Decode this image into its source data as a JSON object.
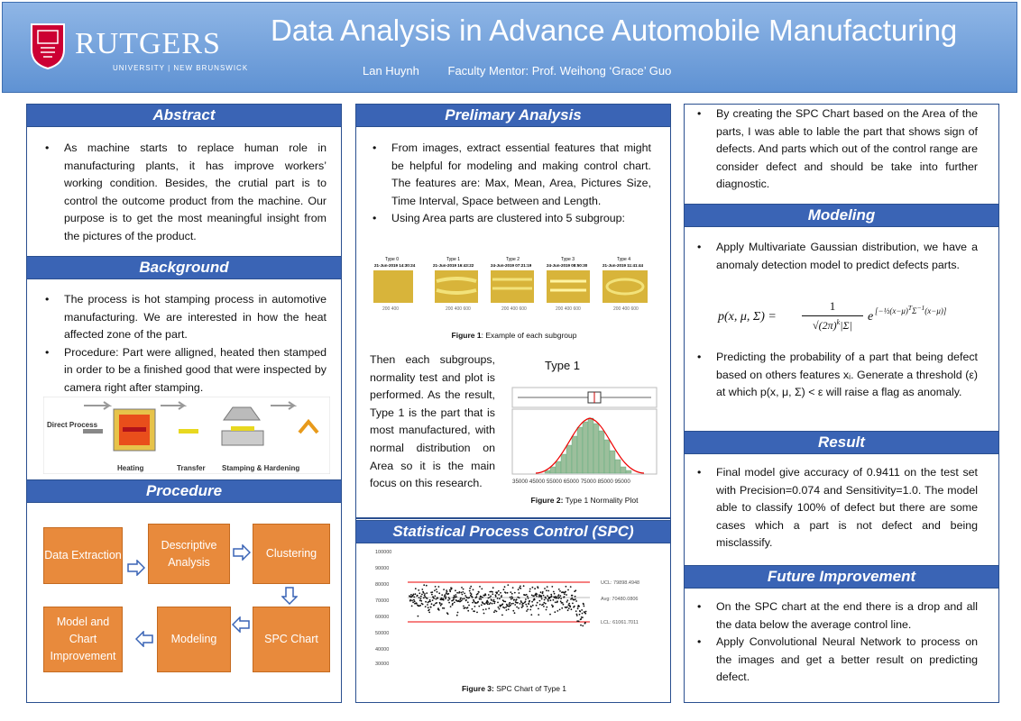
{
  "header": {
    "title": "Data Analysis in Advance Automobile Manufacturing",
    "author": "Lan Huynh",
    "mentor": "Faculty Mentor: Prof. Weihong ‘Grace’ Guo",
    "logo_text": "RUTGERS",
    "logo_sub": "UNIVERSITY | NEW BRUNSWICK"
  },
  "abstract": {
    "heading": "Abstract",
    "bullets": [
      "As machine starts to replace human role in manufacturing plants, it has improve workers’ working condition. Besides, the crutial part is to control the outcome product from the machine. Our purpose is to get the most meaningful insight from the pictures of the product."
    ]
  },
  "background": {
    "heading": "Background",
    "bullets": [
      "The process is hot stamping process in automotive manufacturing. We are interested in how the heat affected zone of the part.",
      "Procedure: Part were alligned, heated then stamped in order to be a finished good that were inspected by camera right after stamping."
    ],
    "diagram_labels": [
      "Direct Process",
      "Heating",
      "Transfer",
      "Stamping & Hardening"
    ]
  },
  "procedure": {
    "heading": "Procedure",
    "steps": [
      "Data Extraction",
      "Descriptive Analysis",
      "Clustering",
      "SPC Chart",
      "Modeling",
      "Model and Chart Improvement"
    ]
  },
  "preliminary": {
    "heading": "Prelimary Analysis",
    "bullets": [
      "From images, extract essential features that might be helpful for modeling and making control chart. The features are: Max, Mean, Area, Pictures Size, Time Interval, Space between and Length.",
      "Using Area parts are clustered into 5 subgroup:"
    ],
    "subgroup_labels": [
      "Type 0",
      "Type 1",
      "Type 2",
      "Type 3",
      "Type 4"
    ],
    "subgroup_dates": [
      "21-Jun-2019 14:30:24",
      "21-Jun-2019 16:43:22",
      "24-Jun-2019 07:21:19",
      "24-Jun-2019 08:50:30",
      "21-Jun-2019 11:41:44"
    ],
    "fig1_label": "Figure 1",
    "fig1_text": ": Example of each subgroup",
    "paragraph": "Then each subgroups, normality test and plot is performed. As the result, Type 1 is the part that is most manufactured, with normal distribution on Area so it is the main focus on this research.",
    "type1_title": "Type 1",
    "hist_ticks": "35000 45000 55000 65000 75000 85000 95000",
    "fig2_label": "Figure 2:",
    "fig2_text": " Type 1 Normality Plot"
  },
  "spc": {
    "heading": "Statistical Process Control (SPC)",
    "ucl_label": "UCL: 79898.4948",
    "avg_label": "Avg: 70480.0806",
    "lcl_label": "LCL: 61061.7011",
    "yticks": [
      "100000",
      "90000",
      "80000",
      "70000",
      "60000",
      "50000",
      "40000",
      "30000"
    ],
    "fig3_label": "Figure 3:",
    "fig3_text": " SPC Chart of Type 1"
  },
  "col3": {
    "intro_bullets": [
      "By creating the SPC Chart based on the Area of the parts, I was able to lable the part that shows sign of defects. And parts which out of the control range are consider defect and should be take into further diagnostic."
    ]
  },
  "modeling": {
    "heading": "Modeling",
    "bullet1": "Apply Multivariate Gaussian distribution, we have a anomaly detection model to predict defects parts.",
    "bullet2": "Predicting the probability of a part that being defect based on others features xᵢ. Generate a threshold (ε) at which p(x, μ, Σ) < ε will raise a flag as anomaly."
  },
  "result": {
    "heading": "Result",
    "bullets": [
      "Final model give accuracy of 0.9411 on the test set with Precision=0.074 and Sensitivity=1.0. The model able to classify 100% of defect but there are some cases which a part is not defect and being misclassify."
    ]
  },
  "future": {
    "heading": "Future Improvement",
    "bullets": [
      "On the SPC chart at the end there is a drop and all the data below the average control line.",
      "Apply Convolutional Neural Network to process on the images and get a better result on predicting defect."
    ]
  }
}
